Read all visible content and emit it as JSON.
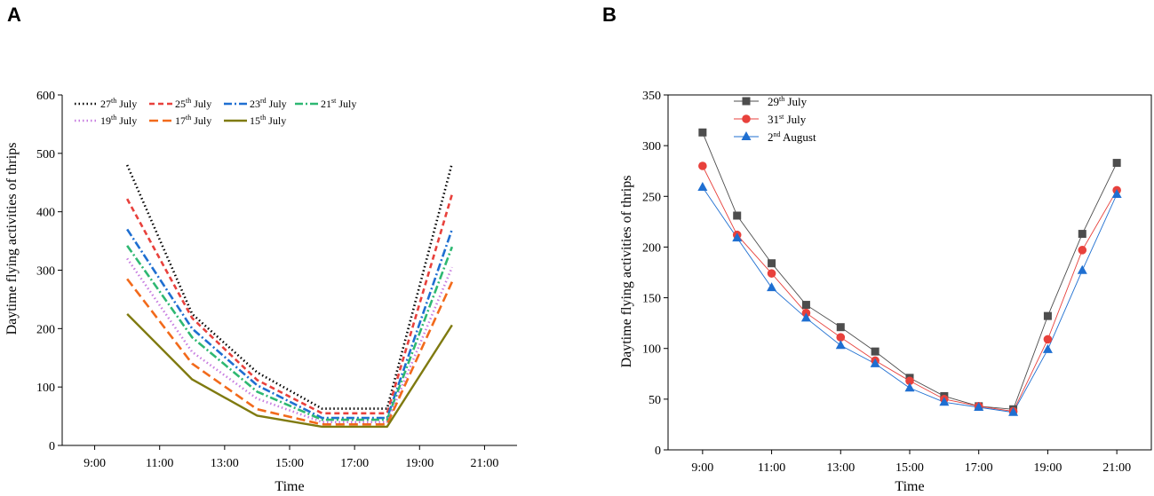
{
  "chart_data": [
    {
      "panel_label": "A",
      "type": "line",
      "xlabel": "Time",
      "ylabel": "Daytime flying activities of thrips",
      "xlim": [
        8,
        22
      ],
      "ylim": [
        0,
        600
      ],
      "x_ticks": [
        9,
        11,
        13,
        15,
        17,
        19,
        21
      ],
      "x_tick_labels": [
        "9:00",
        "11:00",
        "13:00",
        "15:00",
        "17:00",
        "19:00",
        "21:00"
      ],
      "y_ticks": [
        0,
        100,
        200,
        300,
        400,
        500,
        600
      ],
      "y_tick_labels": [
        "0",
        "100",
        "200",
        "300",
        "400",
        "500",
        "600"
      ],
      "legend_position": "top-left, inside",
      "x": [
        10,
        12,
        14,
        16,
        18,
        20
      ],
      "series": [
        {
          "name": "27th July",
          "day": "27",
          "sup": "th",
          "month": "July",
          "color": "#000000",
          "dash": "dot",
          "values": [
            480,
            225,
            125,
            63,
            63,
            483
          ]
        },
        {
          "name": "25th July",
          "day": "25",
          "sup": "th",
          "month": "July",
          "color": "#e8413c",
          "dash": "dash",
          "values": [
            422,
            218,
            112,
            55,
            55,
            430
          ]
        },
        {
          "name": "23rd July",
          "day": "23",
          "sup": "rd",
          "month": "July",
          "color": "#1f6fd1",
          "dash": "dashdot",
          "values": [
            370,
            200,
            103,
            47,
            47,
            370
          ]
        },
        {
          "name": "21st July",
          "day": "21",
          "sup": "st",
          "month": "July",
          "color": "#2eb872",
          "dash": "dashdot",
          "values": [
            342,
            185,
            92,
            44,
            44,
            340
          ]
        },
        {
          "name": "19th July",
          "day": "19",
          "sup": "th",
          "month": "July",
          "color": "#c77de0",
          "dash": "dot",
          "values": [
            320,
            160,
            80,
            40,
            40,
            305
          ]
        },
        {
          "name": "17th July",
          "day": "17",
          "sup": "th",
          "month": "July",
          "color": "#f26a1b",
          "dash": "longdash",
          "values": [
            285,
            140,
            62,
            36,
            36,
            280
          ]
        },
        {
          "name": "15th July",
          "day": "15",
          "sup": "th",
          "month": "July",
          "color": "#7f7a10",
          "dash": "solid",
          "values": [
            225,
            113,
            51,
            32,
            32,
            206
          ]
        }
      ]
    },
    {
      "panel_label": "B",
      "type": "line",
      "xlabel": "Time",
      "ylabel": "Daytime flying activities of thrips",
      "xlim": [
        8,
        22
      ],
      "ylim": [
        0,
        350
      ],
      "x_ticks": [
        9,
        11,
        13,
        15,
        17,
        19,
        21
      ],
      "x_tick_labels": [
        "9:00",
        "11:00",
        "13:00",
        "15:00",
        "17:00",
        "19:00",
        "21:00"
      ],
      "y_ticks": [
        0,
        50,
        100,
        150,
        200,
        250,
        300,
        350
      ],
      "y_tick_labels": [
        "0",
        "50",
        "100",
        "150",
        "200",
        "250",
        "300",
        "350"
      ],
      "legend_position": "top-left, inside",
      "x": [
        9,
        10,
        11,
        12,
        13,
        14,
        15,
        16,
        17,
        18,
        19,
        20,
        21
      ],
      "series": [
        {
          "name": "29th July",
          "day": "29",
          "sup": "th",
          "month": "July",
          "color": "#4d4d4d",
          "marker": "square",
          "values": [
            313,
            231,
            184,
            143,
            121,
            97,
            71,
            53,
            43,
            40,
            132,
            213,
            283
          ]
        },
        {
          "name": "31st July",
          "day": "31",
          "sup": "st",
          "month": "July",
          "color": "#e8413c",
          "marker": "circle",
          "values": [
            280,
            212,
            174,
            135,
            111,
            88,
            68,
            50,
            43,
            38,
            109,
            197,
            256
          ]
        },
        {
          "name": "2nd August",
          "day": "2",
          "sup": "nd",
          "month": "August",
          "color": "#1f6fd1",
          "marker": "triangle",
          "values": [
            259,
            209,
            160,
            130,
            103,
            85,
            61,
            47,
            42,
            37,
            99,
            177,
            252
          ]
        }
      ]
    }
  ]
}
